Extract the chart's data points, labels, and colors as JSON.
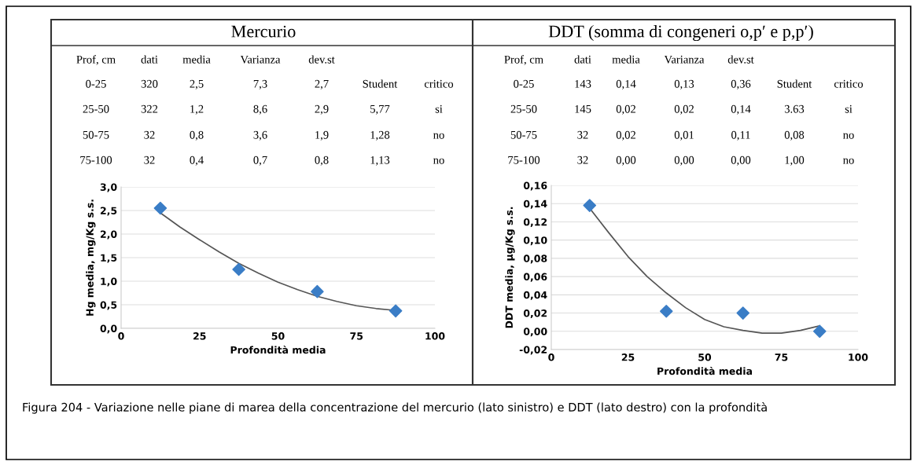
{
  "chart_data": [
    {
      "type": "scatter",
      "title": "Mercurio",
      "xlabel": "Profondità media",
      "ylabel": "Hg media, mg/Kg s.s.",
      "xlim": [
        0,
        100
      ],
      "xticks": [
        0,
        25,
        50,
        75,
        100
      ],
      "ylim": [
        0,
        3
      ],
      "yticks": [
        {
          "value": 0,
          "label": "0,0"
        },
        {
          "value": 0.5,
          "label": "0,5"
        },
        {
          "value": 1,
          "label": "1,0"
        },
        {
          "value": 1.5,
          "label": "1,5"
        },
        {
          "value": 2,
          "label": "2,0"
        },
        {
          "value": 2.5,
          "label": "2,5"
        },
        {
          "value": 3,
          "label": "3,0"
        }
      ],
      "grid": "y",
      "series": [
        {
          "marker": "diamond",
          "color": "#3a7dc6",
          "x": [
            12.5,
            37.5,
            62.5,
            87.5
          ],
          "values": [
            2.55,
            1.25,
            0.78,
            0.37
          ]
        },
        {
          "type": "line",
          "marker": "none",
          "line_style": "solid",
          "color": "#555555",
          "x": [
            12.5,
            18.75,
            25,
            31.25,
            37.5,
            43.75,
            50,
            56.25,
            62.5,
            68.75,
            75,
            81.25,
            87.5
          ],
          "values": [
            2.45,
            2.15,
            1.88,
            1.62,
            1.38,
            1.17,
            0.98,
            0.82,
            0.68,
            0.57,
            0.48,
            0.42,
            0.38
          ]
        }
      ],
      "annotations": [
        "Prof, cm",
        "dati",
        "media",
        "Varianza",
        "dev.st",
        "0-25",
        "320",
        "2,5",
        "7,3",
        "2,7",
        "Student",
        "critico",
        "25-50",
        "322",
        "1,2",
        "8,6",
        "2,9",
        "5,77",
        "si",
        "50-75",
        "32",
        "0,8",
        "3,6",
        "1,9",
        "1,28",
        "no",
        "75-100",
        "32",
        "0,4",
        "0,7",
        "0,8",
        "1,13",
        "no"
      ]
    },
    {
      "type": "scatter",
      "title": "DDT (somma di congeneri o,p′ e p,p′)",
      "xlabel": "Profondità media",
      "ylabel": "DDT media, µg/Kg s.s.",
      "xlim": [
        0,
        100
      ],
      "xticks": [
        0,
        25,
        50,
        75,
        100
      ],
      "ylim": [
        -0.02,
        0.16
      ],
      "yticks": [
        {
          "value": -0.02,
          "label": "-0,02"
        },
        {
          "value": 0,
          "label": "0,00"
        },
        {
          "value": 0.02,
          "label": "0,02"
        },
        {
          "value": 0.04,
          "label": "0,04"
        },
        {
          "value": 0.06,
          "label": "0,06"
        },
        {
          "value": 0.08,
          "label": "0,08"
        },
        {
          "value": 0.1,
          "label": "0,10"
        },
        {
          "value": 0.12,
          "label": "0,12"
        },
        {
          "value": 0.14,
          "label": "0,14"
        },
        {
          "value": 0.16,
          "label": "0,16"
        }
      ],
      "grid": "y",
      "series": [
        {
          "marker": "diamond",
          "color": "#3a7dc6",
          "x": [
            12.5,
            37.5,
            62.5,
            87.5
          ],
          "values": [
            0.138,
            0.022,
            0.02,
            0.0
          ]
        },
        {
          "type": "line",
          "marker": "none",
          "line_style": "solid",
          "color": "#555555",
          "x": [
            12.5,
            18.75,
            25,
            31.25,
            37.5,
            43.75,
            50,
            56.25,
            62.5,
            68.75,
            75,
            81.25,
            87.5
          ],
          "values": [
            0.135,
            0.108,
            0.082,
            0.06,
            0.042,
            0.026,
            0.013,
            0.005,
            0.001,
            -0.002,
            -0.002,
            0.001,
            0.006
          ]
        }
      ],
      "annotations": [
        "Prof, cm",
        "dati",
        "media",
        "Varianza",
        "dev.st",
        "0-25",
        "143",
        "0,14",
        "0,13",
        "0,36",
        "Student",
        "critico",
        "25-50",
        "145",
        "0,02",
        "0,02",
        "0,14",
        "3.63",
        "si",
        "50-75",
        "32",
        "0,02",
        "0,01",
        "0,11",
        "0,08",
        "no",
        "75-100",
        "32",
        "0,00",
        "0,00",
        "0,00",
        "1,00",
        "no",
        "Figura 204 - Variazione nelle piane di marea della concentrazione del mercurio (lato sinistro) e DDT (lato destro) con la profondità"
      ]
    }
  ]
}
